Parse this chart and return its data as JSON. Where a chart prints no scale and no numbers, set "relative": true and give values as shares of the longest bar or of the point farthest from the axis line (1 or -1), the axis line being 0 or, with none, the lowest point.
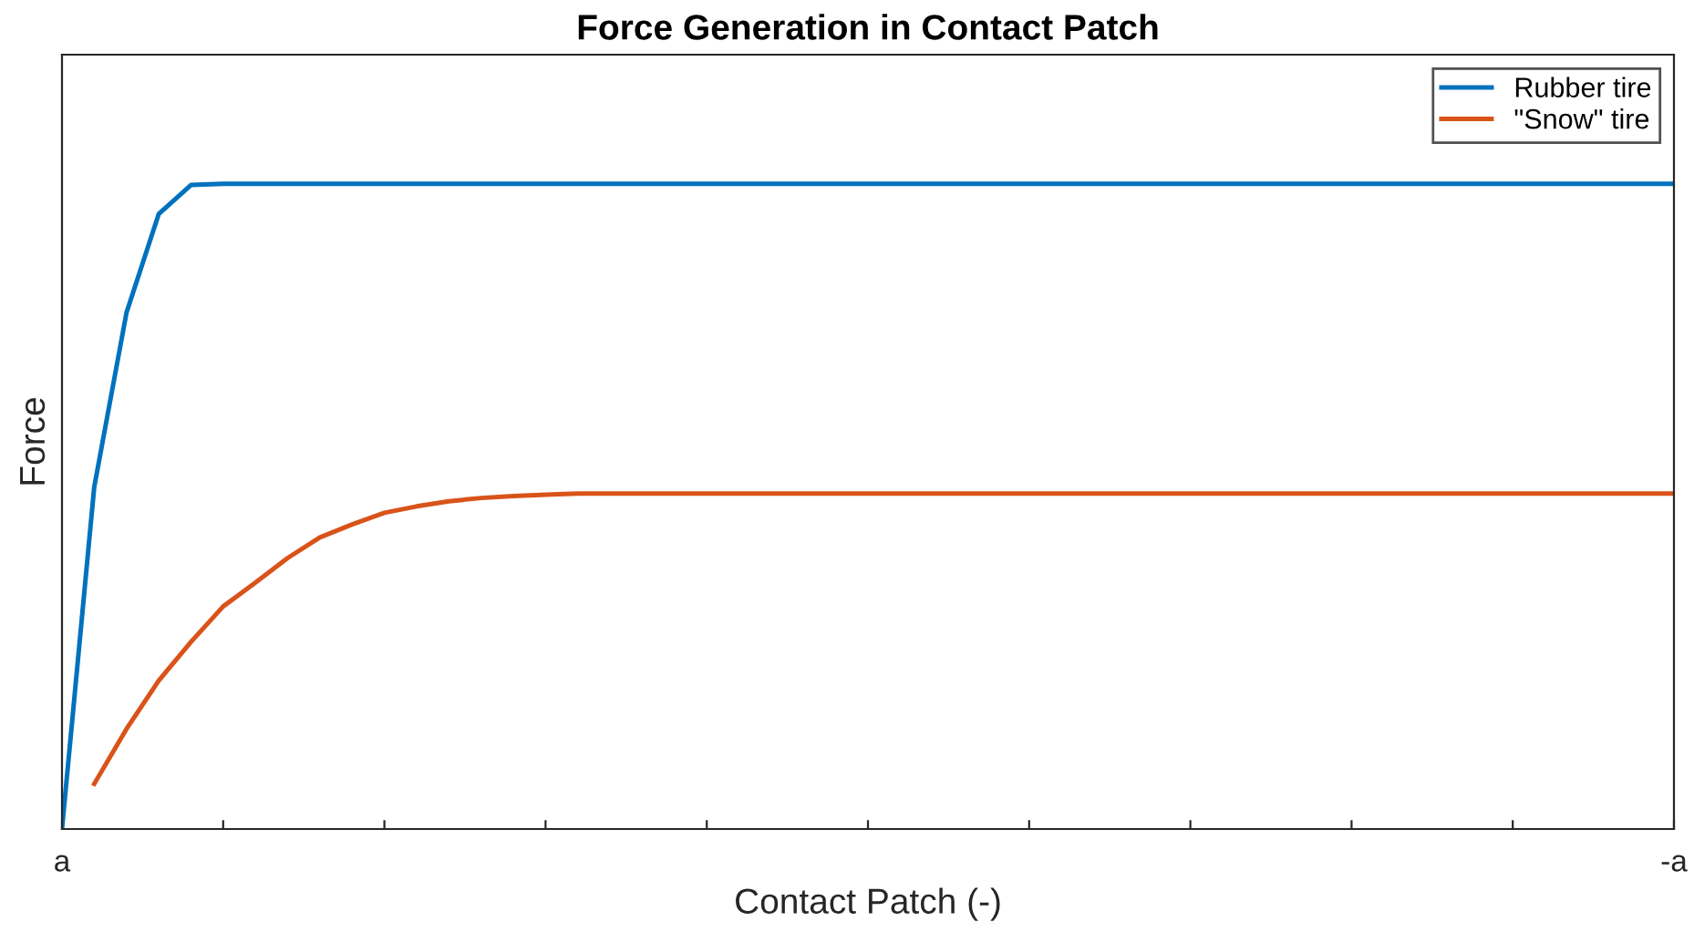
{
  "chart_data": {
    "type": "line",
    "title": "Force Generation in Contact Patch",
    "xlabel": "Contact Patch (-)",
    "ylabel": "Force",
    "relative": true,
    "categories": [
      "a",
      null,
      null,
      null,
      null,
      null,
      null,
      null,
      null,
      null,
      null,
      null,
      null,
      null,
      null,
      null,
      null,
      null,
      null,
      null,
      null,
      null,
      null,
      null,
      null,
      null,
      null,
      null,
      null,
      null,
      null,
      null,
      null,
      null,
      null,
      null,
      null,
      null,
      null,
      null,
      null,
      null,
      null,
      null,
      null,
      null,
      null,
      null,
      null,
      null,
      "-a"
    ],
    "series": [
      {
        "name": "Rubber tire",
        "color": "#0072bd",
        "values": [
          0,
          0.53,
          0.8,
          0.953,
          0.998,
          1,
          1,
          1,
          1,
          1,
          1,
          1,
          1,
          1,
          1,
          1,
          1,
          1,
          1,
          1,
          1,
          1,
          1,
          1,
          1,
          1,
          1,
          1,
          1,
          1,
          1,
          1,
          1,
          1,
          1,
          1,
          1,
          1,
          1,
          1,
          1,
          1,
          1,
          1,
          1,
          1,
          1,
          1,
          1,
          1,
          1
        ]
      },
      {
        "name": "\"Snow\" tire",
        "color": "#d95319",
        "values": [
          null,
          0.07,
          0.155,
          0.23,
          0.29,
          0.345,
          0.382,
          0.42,
          0.452,
          0.472,
          0.49,
          0.5,
          0.508,
          0.513,
          0.516,
          0.518,
          0.52,
          0.52,
          0.52,
          0.52,
          0.52,
          0.52,
          0.52,
          0.52,
          0.52,
          0.52,
          0.52,
          0.52,
          0.52,
          0.52,
          0.52,
          0.52,
          0.52,
          0.52,
          0.52,
          0.52,
          0.52,
          0.52,
          0.52,
          0.52,
          0.52,
          0.52,
          0.52,
          0.52,
          0.52,
          0.52,
          0.52,
          0.52,
          0.52,
          0.52,
          0.52
        ]
      }
    ],
    "legend": "top right",
    "grid": false,
    "marker": "none",
    "line_style": "solid"
  }
}
